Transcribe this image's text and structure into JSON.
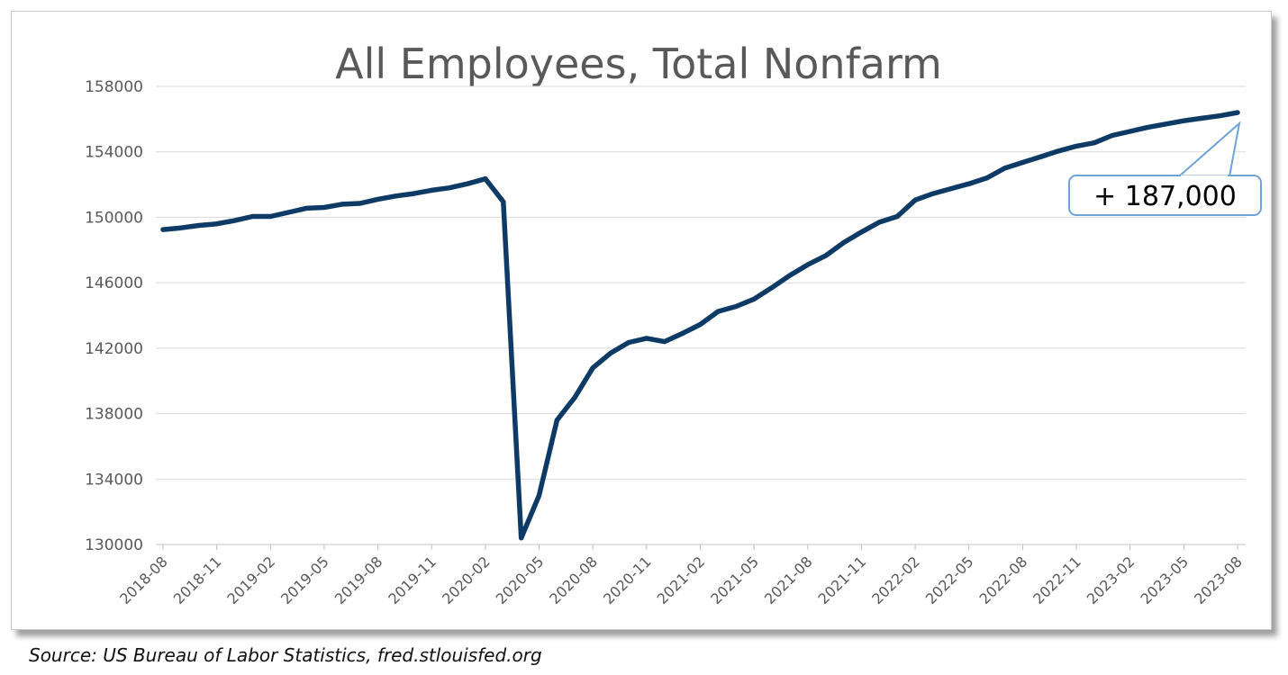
{
  "chart_data": {
    "type": "line",
    "title": "All Employees, Total Nonfarm",
    "xlabel": "",
    "ylabel": "",
    "ylim": [
      130000,
      158000
    ],
    "y_ticks": [
      130000,
      134000,
      138000,
      142000,
      146000,
      150000,
      154000,
      158000
    ],
    "y_tick_labels": [
      "130000",
      "134000",
      "138000",
      "142000",
      "146000",
      "150000",
      "154000",
      "158000"
    ],
    "x_tick_labels": [
      "2018-08",
      "2018-11",
      "2019-02",
      "2019-05",
      "2019-08",
      "2019-11",
      "2020-02",
      "2020-05",
      "2020-08",
      "2020-11",
      "2021-02",
      "2021-05",
      "2021-08",
      "2021-11",
      "2022-02",
      "2022-05",
      "2022-08",
      "2022-11",
      "2023-02",
      "2023-05",
      "2023-08"
    ],
    "grid": true,
    "legend": "none",
    "series": [
      {
        "color": "#0d3b66",
        "x": [
          "2018-08",
          "2018-09",
          "2018-10",
          "2018-11",
          "2018-12",
          "2019-01",
          "2019-02",
          "2019-03",
          "2019-04",
          "2019-05",
          "2019-06",
          "2019-07",
          "2019-08",
          "2019-09",
          "2019-10",
          "2019-11",
          "2019-12",
          "2020-01",
          "2020-02",
          "2020-03",
          "2020-04",
          "2020-05",
          "2020-06",
          "2020-07",
          "2020-08",
          "2020-09",
          "2020-10",
          "2020-11",
          "2020-12",
          "2021-01",
          "2021-02",
          "2021-03",
          "2021-04",
          "2021-05",
          "2021-06",
          "2021-07",
          "2021-08",
          "2021-09",
          "2021-10",
          "2021-11",
          "2021-12",
          "2022-01",
          "2022-02",
          "2022-03",
          "2022-04",
          "2022-05",
          "2022-06",
          "2022-07",
          "2022-08",
          "2022-09",
          "2022-10",
          "2022-11",
          "2022-12",
          "2023-01",
          "2023-02",
          "2023-03",
          "2023-04",
          "2023-05",
          "2023-06",
          "2023-07",
          "2023-08"
        ],
        "values": [
          149250,
          149350,
          149500,
          149600,
          149800,
          150050,
          150050,
          150300,
          150550,
          150600,
          150800,
          150850,
          151100,
          151300,
          151450,
          151650,
          151800,
          152050,
          152350,
          150950,
          130400,
          133000,
          137600,
          139000,
          140800,
          141700,
          142350,
          142600,
          142400,
          142900,
          143450,
          144250,
          144550,
          145000,
          145700,
          146450,
          147100,
          147650,
          148450,
          149100,
          149700,
          150050,
          151050,
          151450,
          151750,
          152050,
          152400,
          153000,
          153350,
          153700,
          154050,
          154350,
          154550,
          155000,
          155250,
          155500,
          155700,
          155900,
          156050,
          156200,
          156400
        ]
      }
    ],
    "annotation": {
      "text": "+ 187,000",
      "points_to": "2023-08"
    }
  },
  "source_text": "Source: US Bureau of Labor Statistics, fred.stlouisfed.org",
  "colors": {
    "line": "#0d3b66",
    "gridline": "#d9d9d9",
    "axis_text": "#595959",
    "title": "#595959",
    "callout_border": "#6fa3d8"
  }
}
